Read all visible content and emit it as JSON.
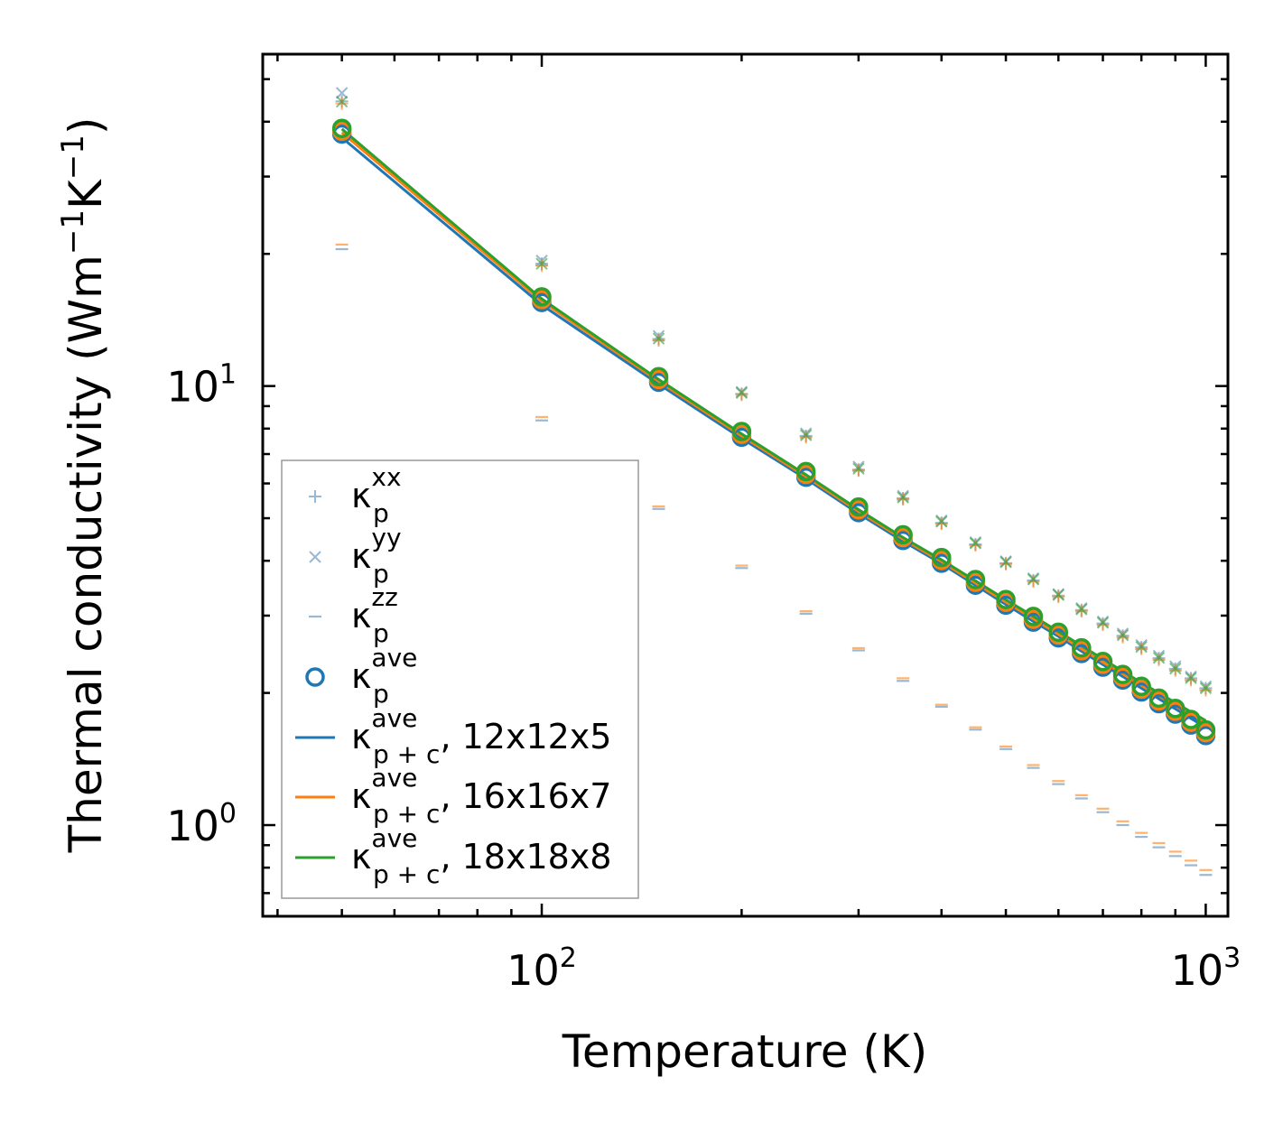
{
  "chart_data": {
    "type": "scatter",
    "title": "",
    "xlabel": "Temperature (K)",
    "ylabel": "Thermal conductivity (Wm",
    "ylabel_exp1": "−1",
    "ylabel_mid": "K",
    "ylabel_exp2": "−1",
    "ylabel_end": ")",
    "xscale": "log",
    "yscale": "log",
    "xlim": [
      38,
      1080
    ],
    "ylim": [
      0.62,
      57
    ],
    "xticks": [
      {
        "base": "10",
        "exp": "2",
        "value": 100
      },
      {
        "base": "10",
        "exp": "3",
        "value": 1000
      }
    ],
    "yticks": [
      {
        "base": "10",
        "exp": "0",
        "value": 1
      },
      {
        "base": "10",
        "exp": "1",
        "value": 10
      }
    ],
    "legend_position": "lower-left",
    "temperatures": [
      50,
      100,
      150,
      200,
      250,
      300,
      350,
      400,
      450,
      500,
      550,
      600,
      650,
      700,
      750,
      800,
      850,
      900,
      950,
      1000
    ],
    "series": [
      {
        "name": "κp^xx",
        "label_main": "κ",
        "label_sub": "p",
        "label_sup": "xx",
        "label_tail": "",
        "marker": "plus",
        "color": "#7fa6c8",
        "values": [
          44.5,
          19.0,
          12.8,
          9.6,
          7.7,
          6.45,
          5.55,
          4.88,
          4.36,
          3.95,
          3.61,
          3.33,
          3.09,
          2.88,
          2.7,
          2.54,
          2.4,
          2.27,
          2.16,
          2.05
        ]
      },
      {
        "name": "κp^yy",
        "label_main": "κ",
        "label_sub": "p",
        "label_sup": "yy",
        "label_tail": "",
        "marker": "x",
        "color": "#7fa6c8",
        "values": [
          46.5,
          19.3,
          13.0,
          9.7,
          7.8,
          6.55,
          5.62,
          4.94,
          4.41,
          3.99,
          3.65,
          3.36,
          3.12,
          2.91,
          2.73,
          2.57,
          2.43,
          2.3,
          2.18,
          2.07
        ]
      },
      {
        "name": "κp^zz",
        "label_main": "κ",
        "label_sub": "p",
        "label_sup": "zz",
        "label_tail": "",
        "marker": "hline",
        "color": "#7fa6c8",
        "values": [
          20.5,
          8.35,
          5.25,
          3.85,
          3.03,
          2.5,
          2.13,
          1.86,
          1.65,
          1.49,
          1.35,
          1.24,
          1.15,
          1.07,
          1.0,
          0.94,
          0.89,
          0.85,
          0.81,
          0.77
        ]
      },
      {
        "name": "κp^ave",
        "label_main": "κ",
        "label_sub": "p",
        "label_sup": "ave",
        "label_tail": "",
        "marker": "circle",
        "color": "#1f77b4",
        "values": [
          37.5,
          15.5,
          10.2,
          7.65,
          6.2,
          5.15,
          4.45,
          3.95,
          3.52,
          3.17,
          2.9,
          2.67,
          2.46,
          2.29,
          2.14,
          2.01,
          1.89,
          1.79,
          1.69,
          1.6
        ]
      },
      {
        "name": "κp+c^ave, 12x12x5",
        "label_main": "κ",
        "label_sub": "p + c",
        "label_sup": "ave",
        "label_tail": ", 12x12x5",
        "marker": "line",
        "color": "#1f77b4",
        "values": [
          36.8,
          15.3,
          10.1,
          7.6,
          6.15,
          5.12,
          4.43,
          3.94,
          3.52,
          3.18,
          2.91,
          2.69,
          2.49,
          2.32,
          2.18,
          2.05,
          1.94,
          1.84,
          1.75,
          1.67
        ]
      },
      {
        "name": "κp+c^ave, 16x16x7",
        "label_main": "κ",
        "label_sub": "p + c",
        "label_sup": "ave",
        "label_tail": ", 16x16x7",
        "marker": "line",
        "color": "#ff7f0e",
        "values": [
          37.8,
          15.6,
          10.25,
          7.7,
          6.22,
          5.18,
          4.48,
          3.98,
          3.56,
          3.22,
          2.95,
          2.72,
          2.52,
          2.35,
          2.21,
          2.08,
          1.97,
          1.87,
          1.78,
          1.7
        ]
      },
      {
        "name": "κp+c^ave, 18x18x8",
        "label_main": "κ",
        "label_sub": "p + c",
        "label_sup": "ave",
        "label_tail": ", 18x18x8",
        "marker": "line",
        "color": "#2ca02c",
        "values": [
          38.5,
          15.8,
          10.35,
          7.78,
          6.28,
          5.23,
          4.52,
          4.02,
          3.6,
          3.26,
          2.99,
          2.76,
          2.56,
          2.39,
          2.24,
          2.11,
          2.0,
          1.9,
          1.81,
          1.73
        ]
      }
    ],
    "extra_overlay": {
      "orange_points": {
        "xx": [
          44.0,
          18.8,
          12.7,
          9.55,
          7.65,
          6.42,
          5.52,
          4.86,
          4.34,
          3.93,
          3.59,
          3.31,
          3.07,
          2.86,
          2.68,
          2.52,
          2.38,
          2.25,
          2.14,
          2.03
        ],
        "zz": [
          21.0,
          8.5,
          5.32,
          3.9,
          3.07,
          2.53,
          2.16,
          1.88,
          1.67,
          1.51,
          1.37,
          1.26,
          1.17,
          1.09,
          1.02,
          0.96,
          0.91,
          0.87,
          0.83,
          0.79
        ]
      },
      "orange_color": "#ff7f0e",
      "green_color": "#2ca02c",
      "green_circle_color": "#2ca02c"
    }
  }
}
